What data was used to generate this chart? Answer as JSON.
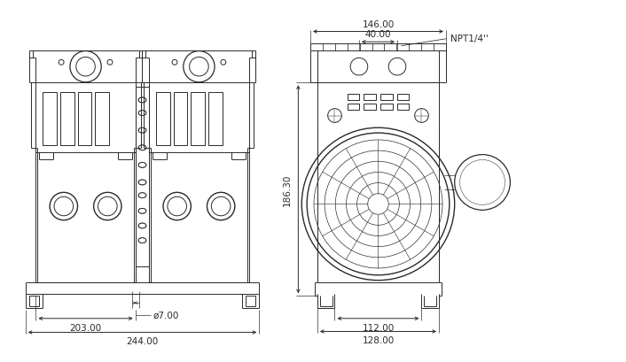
{
  "bg_color": "#ffffff",
  "lc": "#2a2a2a",
  "lw": 0.7,
  "fs": 7.5,
  "dim_203": "203.00",
  "dim_244": "244.00",
  "dim_phi7": "ø7.00",
  "dim_146": "146.00",
  "dim_40": "40.00",
  "dim_npt": "NPT1/4''",
  "dim_186": "186.30",
  "dim_112": "112.00",
  "dim_128": "128.00"
}
